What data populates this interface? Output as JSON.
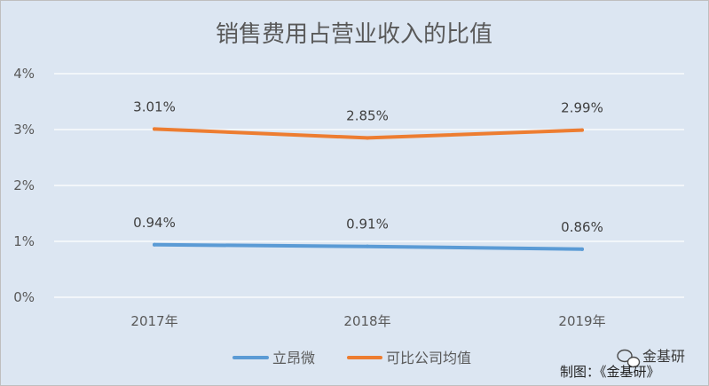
{
  "chart_data": {
    "type": "line",
    "title": "销售费用占营业收入的比值",
    "categories": [
      "2017年",
      "2018年",
      "2019年"
    ],
    "series": [
      {
        "name": "立昂微",
        "values": [
          0.94,
          0.91,
          0.86
        ],
        "labels": [
          "0.94%",
          "0.91%",
          "0.86%"
        ],
        "color": "#5b9bd5"
      },
      {
        "name": "可比公司均值",
        "values": [
          3.01,
          2.85,
          2.99
        ],
        "labels": [
          "3.01%",
          "2.85%",
          "2.99%"
        ],
        "color": "#ed7d31"
      }
    ],
    "y_ticks": [
      "0%",
      "1%",
      "2%",
      "3%",
      "4%"
    ],
    "ylim": [
      0,
      4
    ],
    "grid": true,
    "legend_position": "bottom",
    "xlabel": "",
    "ylabel": ""
  },
  "footer": {
    "credit": "制图：《金基研》",
    "watermark": "金基研"
  },
  "colors": {
    "background": "#dce6f2",
    "gridline": "#ffffff"
  }
}
